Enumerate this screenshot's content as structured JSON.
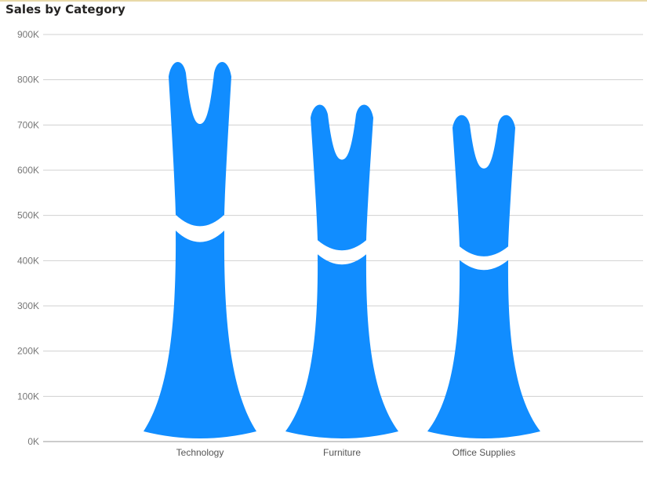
{
  "chart_data": {
    "type": "bar",
    "title": "Sales by Category",
    "categories": [
      "Technology",
      "Furniture",
      "Office Supplies"
    ],
    "values": [
      836000,
      742000,
      719000
    ],
    "ylim": [
      0,
      900000
    ],
    "yticks": [
      "0K",
      "100K",
      "200K",
      "300K",
      "400K",
      "500K",
      "600K",
      "700K",
      "800K",
      "900K"
    ],
    "grid": true,
    "colors": {
      "bar": "#118DFF",
      "grid": "#d0d0d0",
      "axis": "#999999"
    }
  }
}
